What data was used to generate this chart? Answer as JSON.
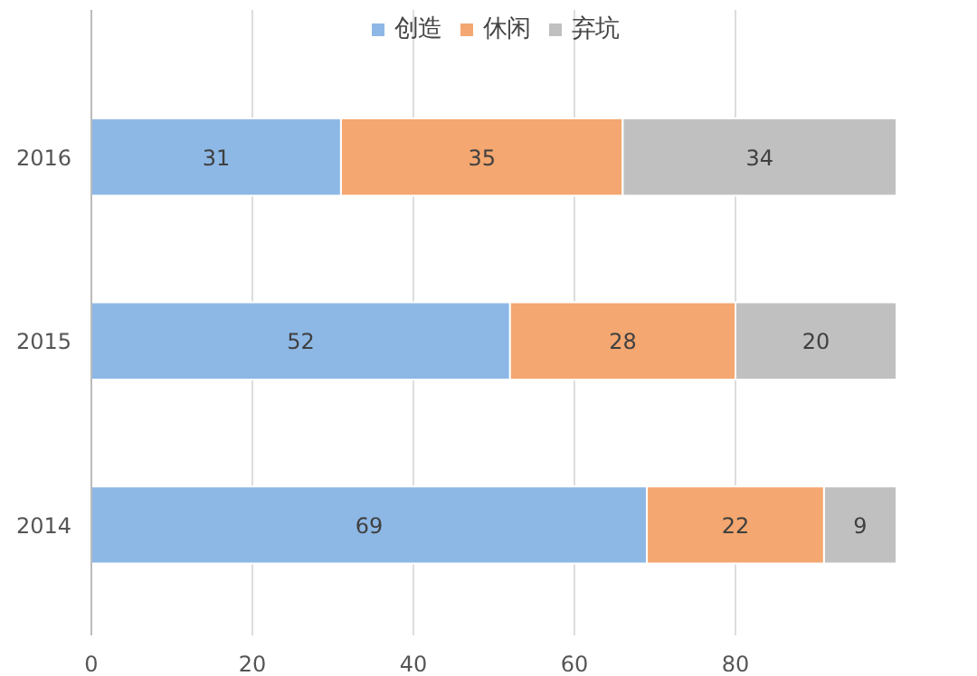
{
  "chart_data": {
    "type": "bar",
    "orientation": "horizontal",
    "stacked": true,
    "categories": [
      "2016",
      "2015",
      "2014"
    ],
    "series": [
      {
        "name": "创造",
        "color": "#8db8e6",
        "values": [
          31,
          52,
          69
        ]
      },
      {
        "name": "休闲",
        "color": "#f4a770",
        "values": [
          35,
          28,
          22
        ]
      },
      {
        "name": "弃坑",
        "color": "#c0c0c0",
        "values": [
          34,
          20,
          9
        ]
      }
    ],
    "xlim": [
      0,
      100
    ],
    "xticks": [
      0,
      20,
      40,
      60,
      80
    ],
    "grid": "x",
    "legend": "top",
    "data_labels": true
  }
}
